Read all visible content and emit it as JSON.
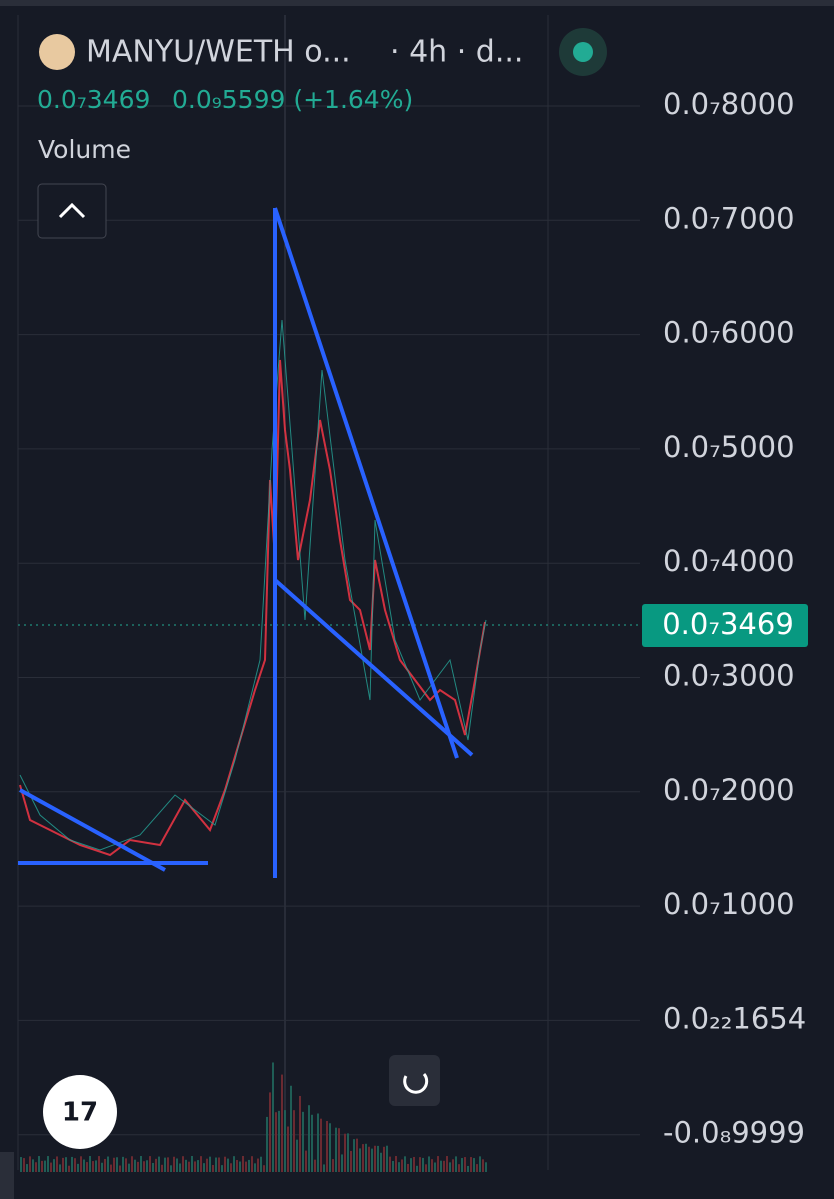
{
  "header": {
    "symbol": "MANYU/WETH o...",
    "interval": "· 4h · d...",
    "price": "0.0₇3469",
    "change": "0.0₉5599 (+1.64%)"
  },
  "indicator": "Volume",
  "price_scale": {
    "labels": [
      "0.0₇8000",
      "0.0₇7000",
      "0.0₇6000",
      "0.0₇5000",
      "0.0₇4000",
      "0.0₇3000",
      "0.0₇2000",
      "0.0₇1000",
      "0.0₂₂1654",
      "-0.0₈9999"
    ],
    "current": "0.0₇3469"
  }
}
